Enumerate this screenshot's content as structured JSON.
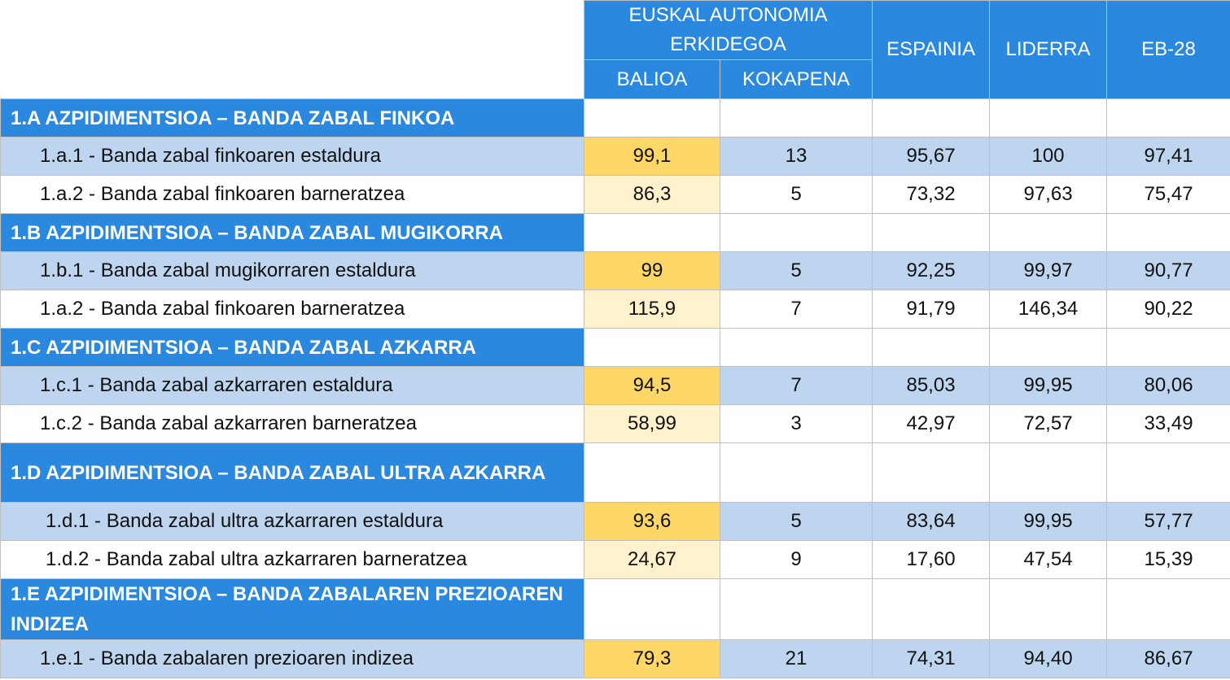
{
  "header": {
    "group": "EUSKAL AUTONOMIA ERKIDEGOA",
    "balioa": "BALIOA",
    "kokapena": "KOKAPENA",
    "espainia": "ESPAINIA",
    "liderra": "LIDERRA",
    "eb28": "EB-28"
  },
  "colors": {
    "header_blue": "#2a88de",
    "row_blue": "#bdd5ee",
    "value_yellow": "#fed766",
    "value_pale": "#fff2cc"
  },
  "sections": [
    {
      "title": "1.A AZPIDIMENTSIOA – BANDA ZABAL FINKOA",
      "rows": [
        {
          "label": "1.a.1 - Banda zabal finkoaren estaldura",
          "balioa": "99,1",
          "kokapena": "13",
          "espainia": "95,67",
          "liderra": "100",
          "eb28": "97,41"
        },
        {
          "label": "1.a.2 - Banda zabal finkoaren barneratzea",
          "balioa": "86,3",
          "kokapena": "5",
          "espainia": "73,32",
          "liderra": "97,63",
          "eb28": "75,47"
        }
      ]
    },
    {
      "title": "1.B AZPIDIMENTSIOA – BANDA ZABAL MUGIKORRA",
      "rows": [
        {
          "label": "1.b.1 - Banda zabal mugikorraren estaldura",
          "balioa": "99",
          "kokapena": "5",
          "espainia": "92,25",
          "liderra": "99,97",
          "eb28": "90,77"
        },
        {
          "label": "1.a.2 - Banda zabal finkoaren barneratzea",
          "balioa": "115,9",
          "kokapena": "7",
          "espainia": "91,79",
          "liderra": "146,34",
          "eb28": "90,22"
        }
      ]
    },
    {
      "title": "1.C AZPIDIMENTSIOA – BANDA ZABAL AZKARRA",
      "rows": [
        {
          "label": "1.c.1 - Banda zabal azkarraren estaldura",
          "balioa": "94,5",
          "kokapena": "7",
          "espainia": "85,03",
          "liderra": "99,95",
          "eb28": "80,06"
        },
        {
          "label": "1.c.2 - Banda zabal azkarraren barneratzea",
          "balioa": "58,99",
          "kokapena": "3",
          "espainia": "42,97",
          "liderra": "72,57",
          "eb28": "33,49"
        }
      ]
    },
    {
      "title": "1.D AZPIDIMENTSIOA – BANDA ZABAL ULTRA AZKARRA",
      "rows": [
        {
          "label": "1.d.1 - Banda zabal ultra azkarraren estaldura",
          "balioa": "93,6",
          "kokapena": "5",
          "espainia": "83,64",
          "liderra": "99,95",
          "eb28": "57,77"
        },
        {
          "label": "1.d.2 - Banda zabal ultra azkarraren barneratzea",
          "balioa": "24,67",
          "kokapena": "9",
          "espainia": "17,60",
          "liderra": "47,54",
          "eb28": "15,39"
        }
      ]
    },
    {
      "title": "1.E AZPIDIMENTSIOA – BANDA ZABALAREN PREZIOAREN INDIZEA",
      "rows": [
        {
          "label": "1.e.1 - Banda zabalaren prezioaren indizea",
          "balioa": "79,3",
          "kokapena": "21",
          "espainia": "74,31",
          "liderra": "94,40",
          "eb28": "86,67"
        }
      ]
    }
  ]
}
